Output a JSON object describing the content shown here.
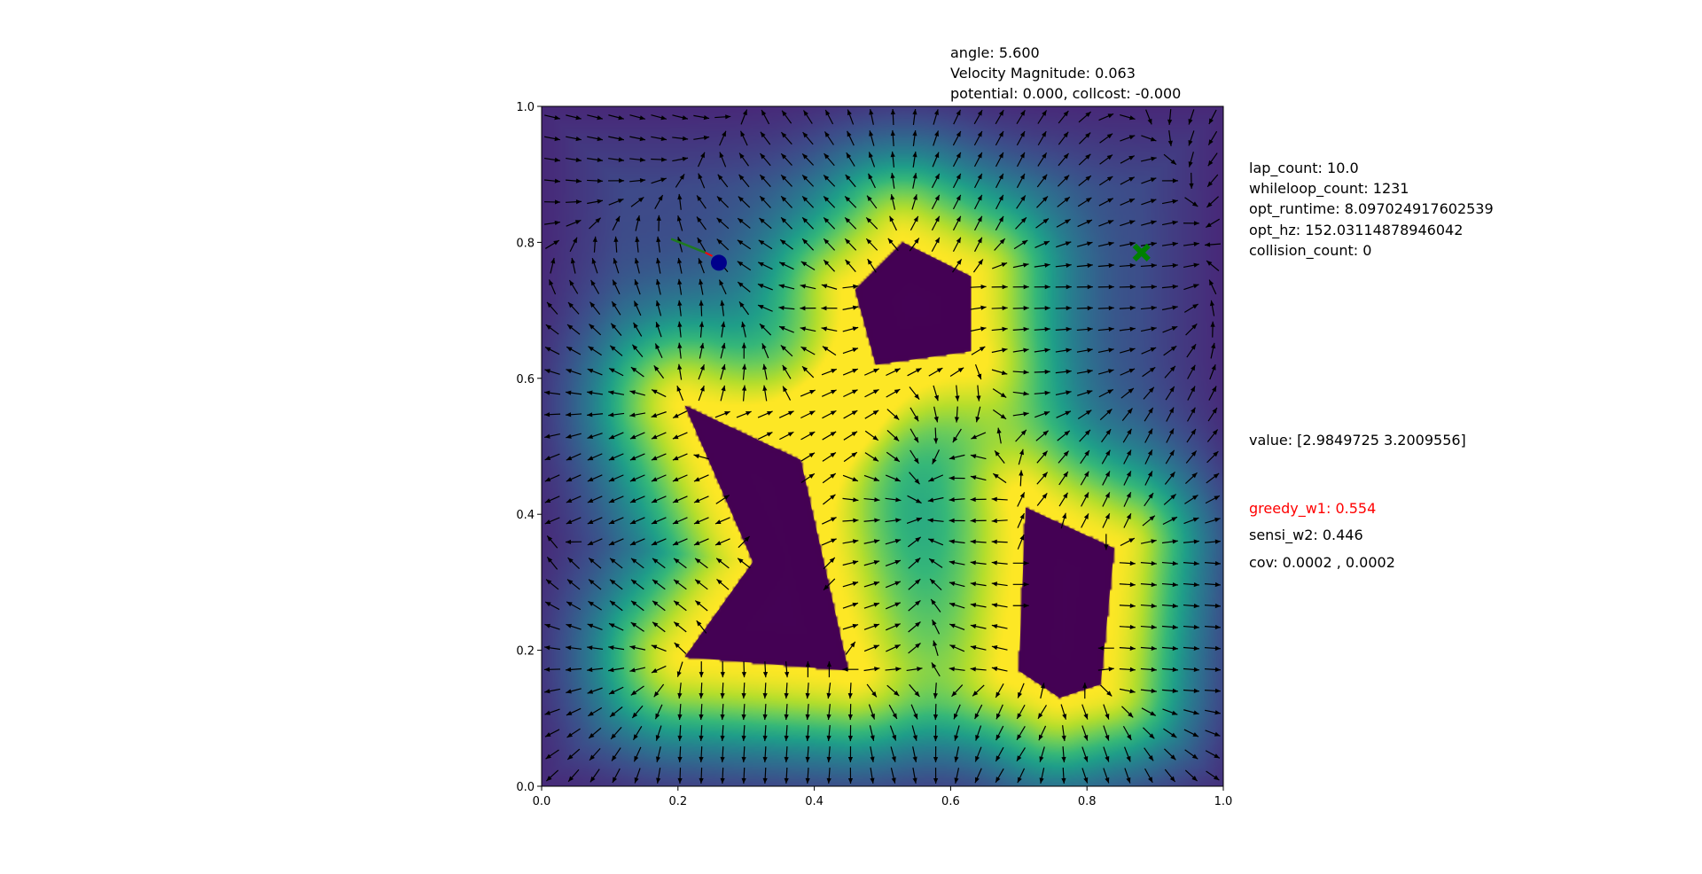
{
  "header": {
    "angle": "angle: 5.600",
    "velocity": "Velocity Magnitude: 0.063",
    "potential": "potential: 0.000, collcost: -0.000"
  },
  "stats": {
    "lap_count": "lap_count: 10.0",
    "whileloop_count": "whileloop_count: 1231",
    "opt_runtime": "opt_runtime: 8.097024917602539",
    "opt_hz": "opt_hz: 152.03114878946042",
    "collision_count": "collision_count: 0",
    "value": "value: [2.9849725 3.2009556]",
    "greedy_w1": "greedy_w1: 0.554",
    "sensi_w2": "sensi_w2: 0.446",
    "cov": "cov: 0.0002 , 0.0002"
  },
  "colors": {
    "greedy": "#ff0000",
    "text": "#000000",
    "obstacle": "#440154",
    "goal": "#008000",
    "agent": "#00008b",
    "arrow": "#000000"
  },
  "chart_data": {
    "type": "heatmap",
    "subtype": "potential field with quiver arrows",
    "xlim": [
      0.0,
      1.0
    ],
    "ylim": [
      0.0,
      1.0
    ],
    "xticks": [
      "0.0",
      "0.2",
      "0.4",
      "0.6",
      "0.8",
      "1.0"
    ],
    "yticks": [
      "0.0",
      "0.2",
      "0.4",
      "0.6",
      "0.8",
      "1.0"
    ],
    "colormap": "viridis",
    "obstacles": [
      {
        "name": "pentagon",
        "points": [
          [
            0.53,
            0.8
          ],
          [
            0.63,
            0.75
          ],
          [
            0.63,
            0.64
          ],
          [
            0.49,
            0.62
          ],
          [
            0.46,
            0.73
          ]
        ]
      },
      {
        "name": "chevron",
        "points": [
          [
            0.21,
            0.56
          ],
          [
            0.38,
            0.48
          ],
          [
            0.45,
            0.17
          ],
          [
            0.21,
            0.19
          ],
          [
            0.31,
            0.33
          ]
        ]
      },
      {
        "name": "quad",
        "points": [
          [
            0.71,
            0.41
          ],
          [
            0.84,
            0.35
          ],
          [
            0.82,
            0.15
          ],
          [
            0.76,
            0.13
          ],
          [
            0.7,
            0.17
          ]
        ]
      }
    ],
    "agent": {
      "x": 0.26,
      "y": 0.77
    },
    "heading_arrow": {
      "x": 0.24,
      "y": 0.785,
      "dx": -0.05,
      "dy": 0.02
    },
    "goal": {
      "x": 0.88,
      "y": 0.785
    },
    "quiver_grid": {
      "nx": 32,
      "ny": 32
    }
  }
}
